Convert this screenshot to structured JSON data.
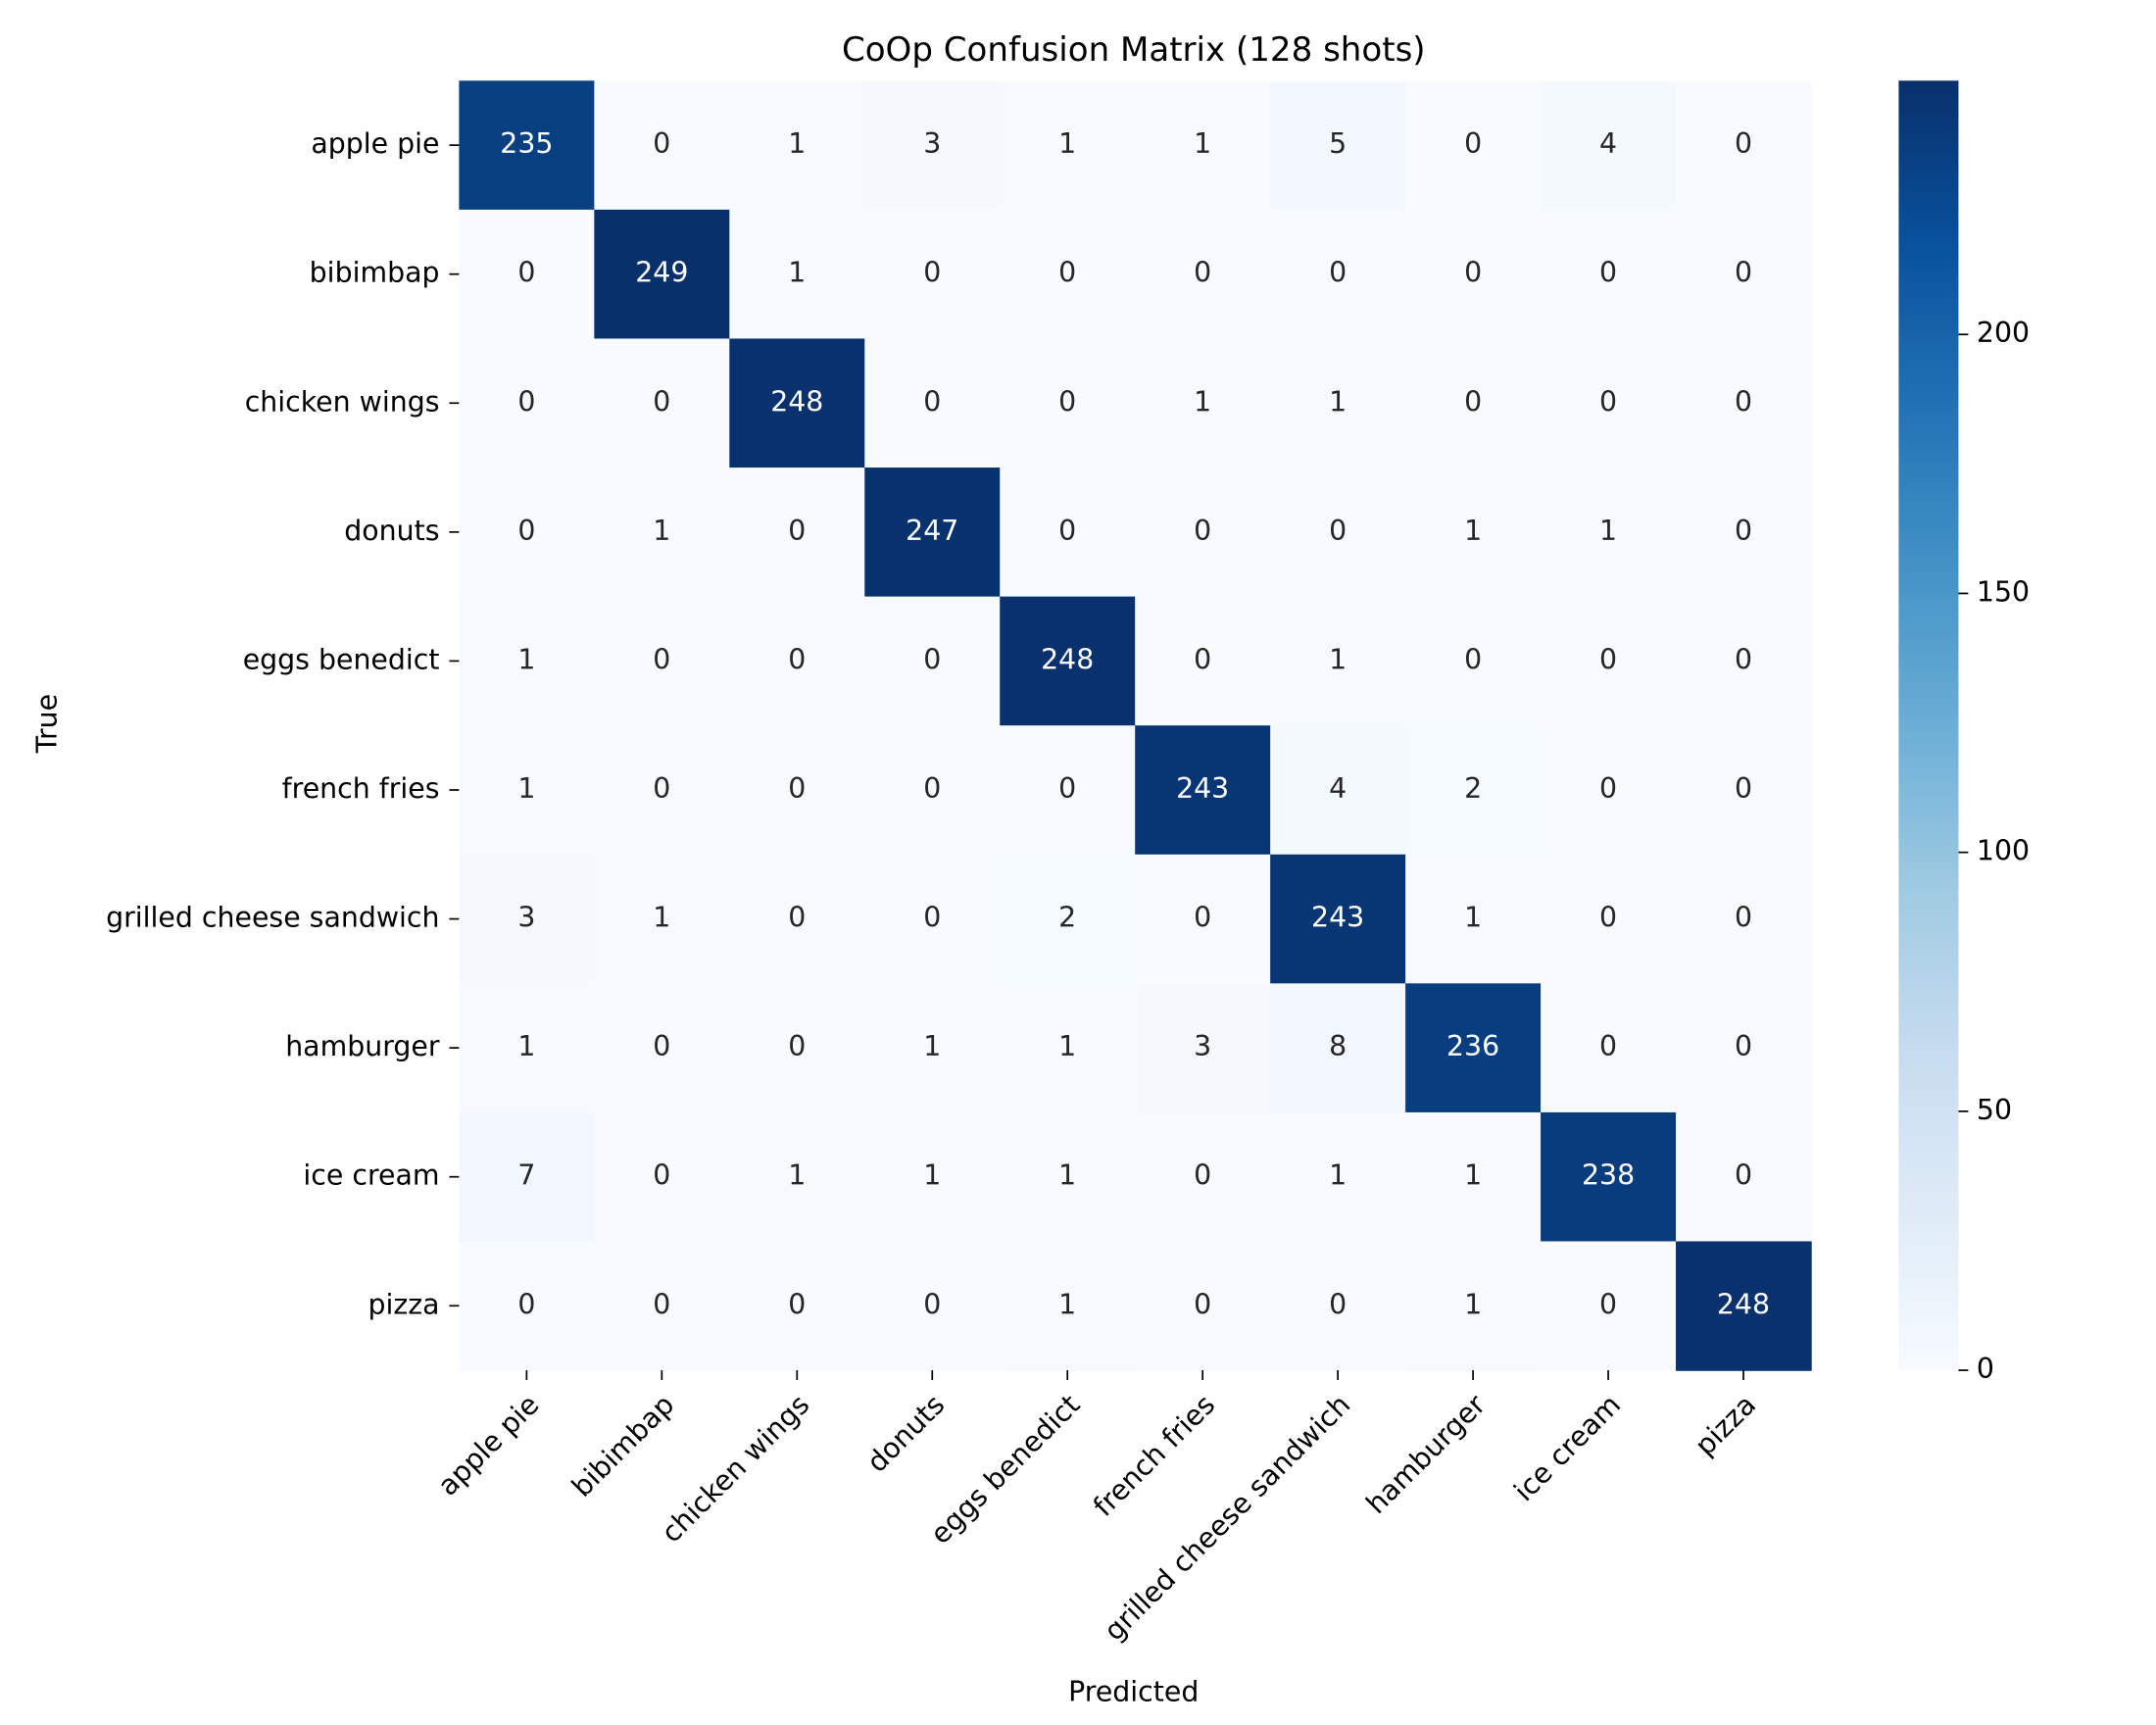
{
  "chart_data": {
    "type": "heatmap",
    "title": "CoOp Confusion Matrix (128 shots)",
    "x_label": "Predicted",
    "y_label": "True",
    "x_categories": [
      "apple pie",
      "bibimbap",
      "chicken wings",
      "donuts",
      "eggs benedict",
      "french fries",
      "grilled cheese sandwich",
      "hamburger",
      "ice cream",
      "pizza"
    ],
    "y_categories": [
      "apple pie",
      "bibimbap",
      "chicken wings",
      "donuts",
      "eggs benedict",
      "french fries",
      "grilled cheese sandwich",
      "hamburger",
      "ice cream",
      "pizza"
    ],
    "values": [
      [
        235,
        0,
        1,
        3,
        1,
        1,
        5,
        0,
        4,
        0
      ],
      [
        0,
        249,
        1,
        0,
        0,
        0,
        0,
        0,
        0,
        0
      ],
      [
        0,
        0,
        248,
        0,
        0,
        1,
        1,
        0,
        0,
        0
      ],
      [
        0,
        1,
        0,
        247,
        0,
        0,
        0,
        1,
        1,
        0
      ],
      [
        1,
        0,
        0,
        0,
        248,
        0,
        1,
        0,
        0,
        0
      ],
      [
        1,
        0,
        0,
        0,
        0,
        243,
        4,
        2,
        0,
        0
      ],
      [
        3,
        1,
        0,
        0,
        2,
        0,
        243,
        1,
        0,
        0
      ],
      [
        1,
        0,
        0,
        1,
        1,
        3,
        8,
        236,
        0,
        0
      ],
      [
        7,
        0,
        1,
        1,
        1,
        0,
        1,
        1,
        238,
        0
      ],
      [
        0,
        0,
        0,
        0,
        1,
        0,
        0,
        1,
        0,
        248
      ]
    ],
    "colormap": "Blues",
    "clim": [
      0,
      249
    ],
    "colorbar_ticks": [
      0,
      50,
      100,
      150,
      200
    ]
  }
}
